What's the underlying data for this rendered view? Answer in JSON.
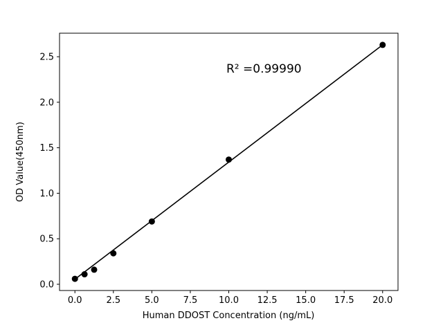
{
  "chart_data": {
    "type": "scatter",
    "title": "",
    "xlabel": "Human DDOST Concentration (ng/mL)",
    "ylabel": "OD Value(450nm)",
    "annotation": "R² =0.99990",
    "x": [
      0,
      0.625,
      1.25,
      2.5,
      5,
      10,
      20
    ],
    "y": [
      0.06,
      0.11,
      0.16,
      0.34,
      0.69,
      1.37,
      2.63
    ],
    "fit_line": {
      "x": [
        0,
        20
      ],
      "y": [
        0.055,
        2.63
      ]
    },
    "xtick_values": [
      0,
      2.5,
      5,
      7.5,
      10,
      12.5,
      15,
      17.5,
      20
    ],
    "xtick_labels": [
      "0.0",
      "2.5",
      "5.0",
      "7.5",
      "10.0",
      "12.5",
      "15.0",
      "17.5",
      "20.0"
    ],
    "ytick_values": [
      0,
      0.5,
      1,
      1.5,
      2,
      2.5
    ],
    "ytick_labels": [
      "0.0",
      "0.5",
      "1.0",
      "1.5",
      "2.0",
      "2.5"
    ],
    "xlim": [
      -1,
      21
    ],
    "ylim": [
      -0.0685,
      2.7585
    ],
    "legend": "none",
    "grid": false,
    "marker_color": "#000000",
    "line_color": "#000000",
    "background_color": "#ffffff"
  }
}
